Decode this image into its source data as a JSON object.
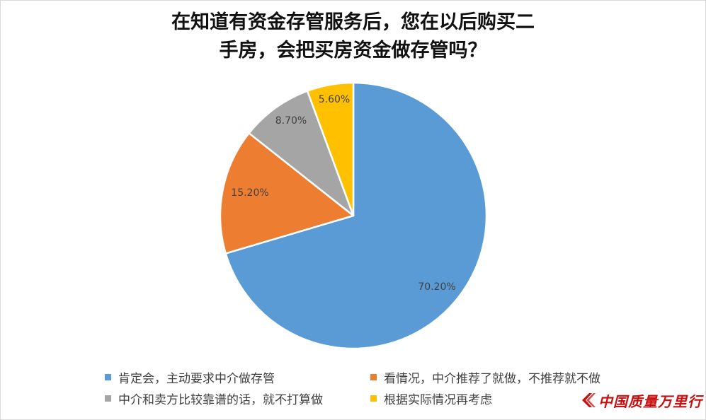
{
  "chart_data": {
    "type": "pie",
    "title_lines": [
      "在知道有资金存管服务后，您在以后购买二",
      "手房，会把买房资金做存管吗？"
    ],
    "slices": [
      {
        "label": "肯定会，主动要求中介做存管",
        "value": 70.2,
        "display": "70.20%",
        "color": "#5b9bd5"
      },
      {
        "label": "看情况，中介推荐了就做，不推荐就不做",
        "value": 15.2,
        "display": "15.20%",
        "color": "#ed7d31"
      },
      {
        "label": "中介和卖方比较靠谱的话，就不打算做",
        "value": 8.7,
        "display": "8.70%",
        "color": "#a5a5a5"
      },
      {
        "label": "根据实际情况再考虑",
        "value": 5.6,
        "display": "5.60%",
        "color": "#ffc000"
      }
    ],
    "legend_position": "bottom"
  },
  "watermark": {
    "text": "中国质量万里行",
    "color": "#c81010"
  }
}
